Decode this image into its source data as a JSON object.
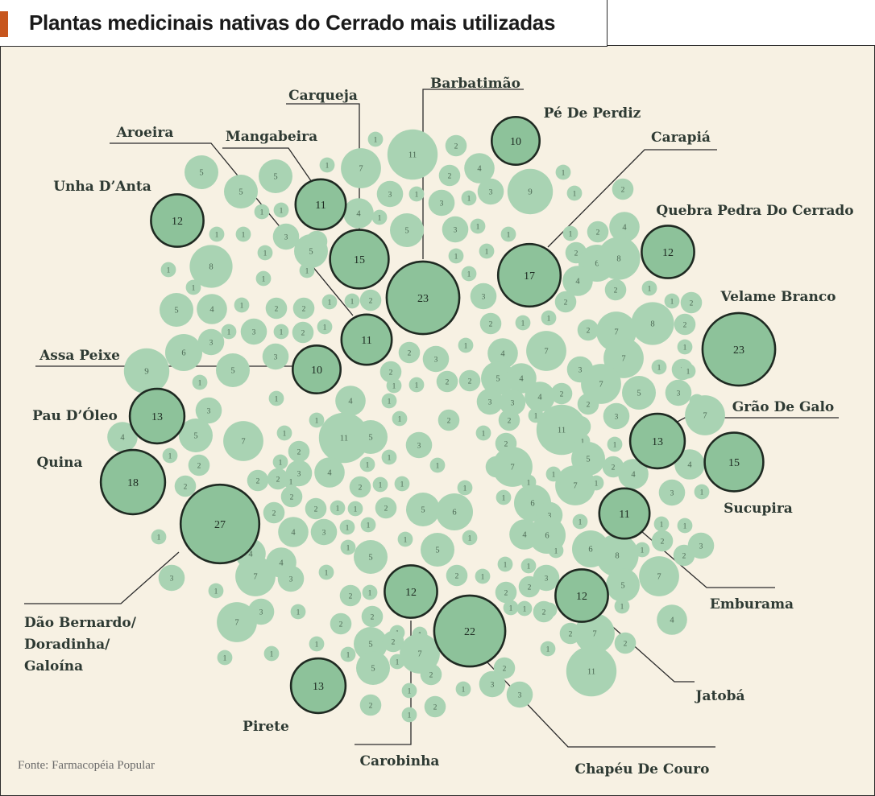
{
  "title": "Plantas medicinais nativas do Cerrado mais utilizadas",
  "source": "Fonte: Farmacopéia Popular",
  "colors": {
    "background": "#f7f1e3",
    "bubble_light": "#a9d3b3",
    "bubble_dark": "#8dc29a",
    "bubble_outline": "#1f2a22",
    "text": "#2e3a33",
    "accent": "#c7561e"
  },
  "chart_data": {
    "type": "bubble",
    "title": "Plantas medicinais nativas do Cerrado mais utilizadas",
    "highlighted": [
      {
        "name": "Barbatimão",
        "value": 23
      },
      {
        "name": "Carqueja",
        "value": 15
      },
      {
        "name": "Pé De Perdiz",
        "value": 10
      },
      {
        "name": "Aroeira",
        "value": 11
      },
      {
        "name": "Mangabeira",
        "value": 11
      },
      {
        "name": "Carapiá",
        "value": 17
      },
      {
        "name": "Unha D’Anta",
        "value": 12
      },
      {
        "name": "Quebra Pedra Do Cerrado",
        "value": 12
      },
      {
        "name": "Velame Branco",
        "value": 23
      },
      {
        "name": "Assa Peixe",
        "value": 10
      },
      {
        "name": "Grão De Galo",
        "value": 13
      },
      {
        "name": "Pau D’Óleo",
        "value": 13
      },
      {
        "name": "Quina",
        "value": 18
      },
      {
        "name": "Sucupira",
        "value": 15
      },
      {
        "name": "Dão Bernardo/ Doradinha/ Galoína",
        "value": 27
      },
      {
        "name": "Emburama",
        "value": 11
      },
      {
        "name": "Jatobá",
        "value": 12
      },
      {
        "name": "Carobinha",
        "value": 12
      },
      {
        "name": "Pirete",
        "value": 13
      },
      {
        "name": "Chapéu De Couro",
        "value": 22
      }
    ],
    "other_values": [
      1,
      11,
      2,
      7,
      4,
      5,
      5,
      5,
      1,
      1,
      3,
      1,
      3,
      2,
      9,
      1,
      3,
      2,
      1,
      1,
      1,
      1,
      3,
      4,
      1,
      5,
      4,
      1,
      1,
      2,
      3,
      1,
      1,
      8,
      1,
      2,
      1,
      5,
      1,
      2,
      1,
      1,
      6,
      8,
      1,
      4,
      1,
      2,
      1,
      1,
      7,
      3,
      5,
      4,
      2,
      2,
      2,
      1,
      2,
      1,
      1,
      1,
      2,
      8,
      2,
      1,
      3,
      3,
      1,
      2,
      1,
      1,
      2,
      2,
      6,
      1,
      1,
      3,
      1,
      5,
      2,
      4,
      7,
      7,
      9,
      2,
      3,
      1,
      3,
      2,
      1,
      1,
      1,
      2,
      2,
      5,
      4,
      7,
      3,
      5,
      1,
      2,
      3,
      1,
      2,
      1,
      4,
      1,
      3,
      3,
      2,
      4,
      1,
      1,
      3,
      1,
      2,
      2,
      7,
      7,
      1,
      4,
      5,
      11,
      5,
      11,
      2,
      1,
      1,
      2,
      1,
      1,
      3,
      1,
      1,
      1,
      2,
      2,
      5,
      1,
      7,
      2,
      3,
      4,
      2,
      2,
      2,
      1,
      1,
      1,
      7,
      1,
      4,
      4,
      2,
      1,
      1,
      3,
      1,
      1,
      6,
      5,
      2,
      2,
      1,
      1,
      2,
      2,
      6,
      1,
      1,
      4,
      1,
      3,
      3,
      1,
      1,
      1,
      1,
      4,
      1,
      1,
      1,
      6,
      5,
      4,
      2,
      2,
      1,
      3,
      1,
      6,
      8,
      5,
      4,
      1,
      1,
      1,
      3,
      1,
      2,
      3,
      1,
      7,
      7,
      5,
      2,
      2,
      2,
      1,
      3,
      1,
      3,
      1,
      2,
      1,
      1,
      2,
      1,
      2,
      7,
      4,
      1,
      2,
      1,
      7,
      5,
      2,
      2,
      1,
      1,
      1,
      7,
      1,
      1,
      5,
      1,
      2,
      2,
      3,
      1,
      1,
      11,
      2,
      1,
      2,
      3,
      3,
      2,
      3,
      1,
      1,
      10,
      8,
      2,
      3,
      3,
      2,
      1,
      5
    ]
  }
}
